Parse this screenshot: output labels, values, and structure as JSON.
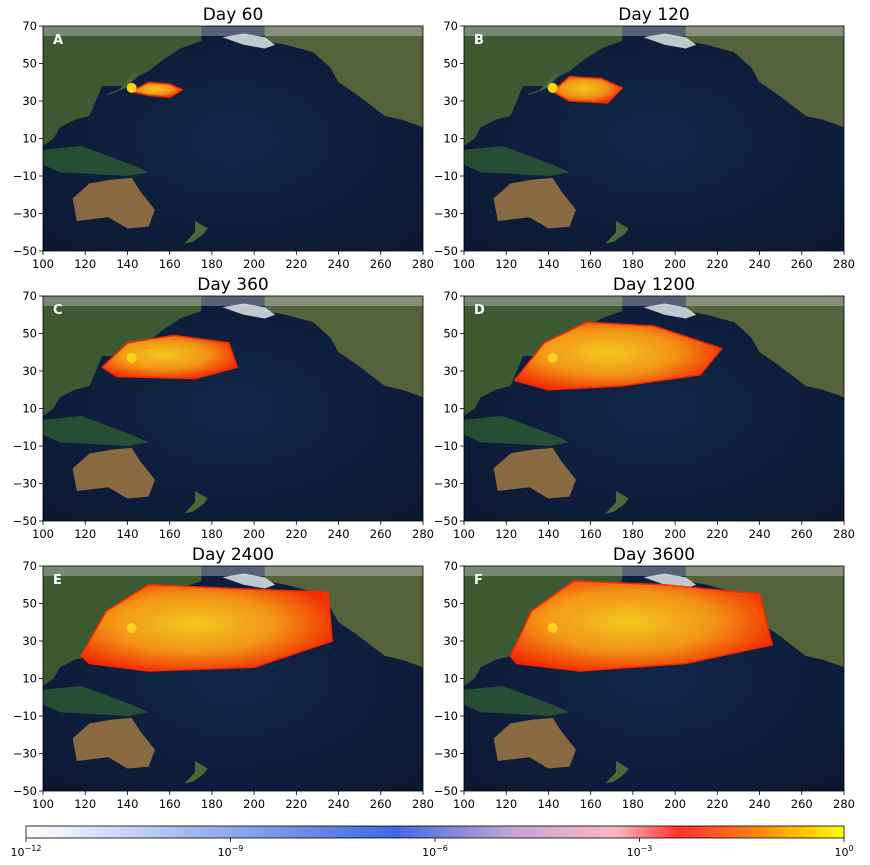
{
  "figure": {
    "panels": [
      {
        "letter": "A",
        "title": "Day 60"
      },
      {
        "letter": "B",
        "title": "Day 120"
      },
      {
        "letter": "C",
        "title": "Day 360"
      },
      {
        "letter": "D",
        "title": "Day 1200"
      },
      {
        "letter": "E",
        "title": "Day 2400"
      },
      {
        "letter": "F",
        "title": "Day 3600"
      }
    ],
    "x_ticks": [
      "100",
      "120",
      "140",
      "160",
      "180",
      "200",
      "220",
      "240",
      "260",
      "280"
    ],
    "y_ticks": [
      "70",
      "50",
      "30",
      "10",
      "−10",
      "−30",
      "−50"
    ],
    "colorbar": {
      "ticks": [
        {
          "base": "10",
          "exp": "−12"
        },
        {
          "base": "10",
          "exp": "−9"
        },
        {
          "base": "10",
          "exp": "−6"
        },
        {
          "base": "10",
          "exp": "−3"
        },
        {
          "base": "10",
          "exp": "0"
        }
      ],
      "colors": [
        "#ffffff",
        "#4169e1",
        "#ffb6c1",
        "#ff0000",
        "#ffff00"
      ]
    },
    "colors": {
      "ocean": "#0f1f3d",
      "land": "#3e5a33",
      "desert": "#8a6a42",
      "ice": "#dfe6ea",
      "plume_low": "#ff2a00",
      "plume_high": "#ffd21f"
    }
  }
}
